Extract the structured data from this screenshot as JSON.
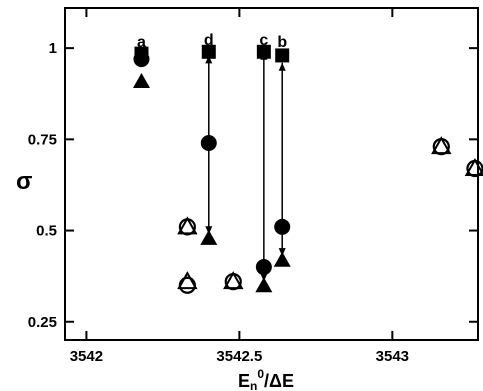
{
  "chart_data": {
    "type": "scatter",
    "xlabel": {
      "base": "E",
      "sub": "n",
      "sup": "0",
      "rest": "/ΔE"
    },
    "ylabel": "σ",
    "xlim": [
      3541.93,
      3543.28
    ],
    "ylim": [
      0.2,
      1.11
    ],
    "x_ticks": [
      3542,
      3542.5,
      3543
    ],
    "x_tick_labels": [
      "3542",
      "3542.5",
      "3543"
    ],
    "y_ticks": [
      0.25,
      0.5,
      0.75,
      1
    ],
    "y_tick_labels": [
      "0.25",
      "0.5",
      "0.75",
      "1"
    ],
    "grid": false,
    "series": [
      {
        "marker": "filled-square",
        "points": [
          [
            3542.18,
            0.985
          ],
          [
            3542.4,
            0.99
          ],
          [
            3542.58,
            0.99
          ],
          [
            3542.64,
            0.98
          ]
        ]
      },
      {
        "marker": "filled-circle",
        "points": [
          [
            3542.18,
            0.97
          ],
          [
            3542.4,
            0.74
          ],
          [
            3542.58,
            0.4
          ],
          [
            3542.64,
            0.51
          ]
        ]
      },
      {
        "marker": "filled-triangle",
        "points": [
          [
            3542.18,
            0.91
          ],
          [
            3542.4,
            0.48
          ],
          [
            3542.58,
            0.35
          ],
          [
            3542.64,
            0.42
          ]
        ]
      },
      {
        "marker": "open-circle",
        "points": [
          [
            3542.33,
            0.51
          ],
          [
            3542.33,
            0.35
          ],
          [
            3542.48,
            0.36
          ],
          [
            3543.16,
            0.73
          ],
          [
            3543.27,
            0.67
          ]
        ]
      },
      {
        "marker": "open-triangle",
        "points": [
          [
            3542.33,
            0.51
          ],
          [
            3542.33,
            0.36
          ],
          [
            3542.48,
            0.36
          ],
          [
            3543.16,
            0.73
          ],
          [
            3543.27,
            0.67
          ]
        ]
      }
    ],
    "arrows": [
      {
        "x": 3542.4,
        "from": 0.98,
        "to": 0.49
      },
      {
        "x": 3542.58,
        "from": 0.99,
        "to": 0.36
      },
      {
        "x": 3542.64,
        "from": 0.96,
        "to": 0.43
      }
    ],
    "annotations": [
      {
        "text": "a",
        "x": 3542.18,
        "y": 1.02
      },
      {
        "text": "d",
        "x": 3542.4,
        "y": 1.025
      },
      {
        "text": "c",
        "x": 3542.58,
        "y": 1.025
      },
      {
        "text": "b",
        "x": 3542.64,
        "y": 1.02
      }
    ]
  }
}
